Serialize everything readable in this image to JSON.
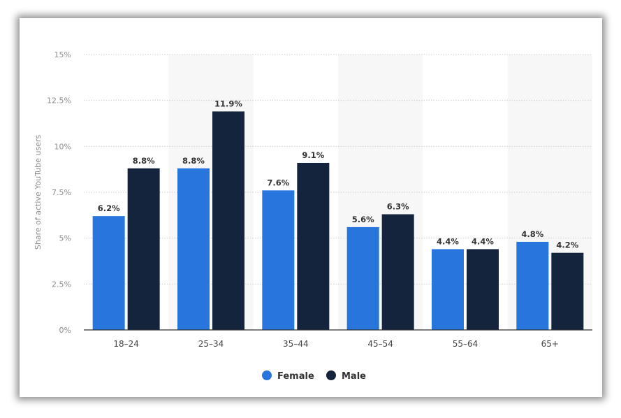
{
  "chart_data": {
    "type": "bar",
    "title": "",
    "xlabel": "",
    "ylabel": "Share of active YouTube users",
    "categories": [
      "18-24",
      "25-34",
      "35-44",
      "45-54",
      "55-64",
      "65+"
    ],
    "series": [
      {
        "name": "Female",
        "color": "#2876dd",
        "values": [
          6.2,
          8.8,
          7.6,
          5.6,
          4.4,
          4.8
        ],
        "labels": [
          "6.2%",
          "8.8%",
          "7.6%",
          "5.6%",
          "4.4%",
          "4.8%"
        ]
      },
      {
        "name": "Male",
        "color": "#14243d",
        "values": [
          8.8,
          11.9,
          9.1,
          6.3,
          4.4,
          4.2
        ],
        "labels": [
          "8.8%",
          "11.9%",
          "9.1%",
          "6.3%",
          "4.4%",
          "4.2%"
        ]
      }
    ],
    "ylim": [
      0,
      15
    ],
    "yticks": [
      0,
      2.5,
      5,
      7.5,
      10,
      12.5,
      15
    ],
    "ytick_labels": [
      "0%",
      "2.5%",
      "5%",
      "7.5%",
      "10%",
      "12.5%",
      "15%"
    ],
    "grid": true,
    "alternating_band_color": "#f7f7f7",
    "legend_position": "bottom-center"
  }
}
